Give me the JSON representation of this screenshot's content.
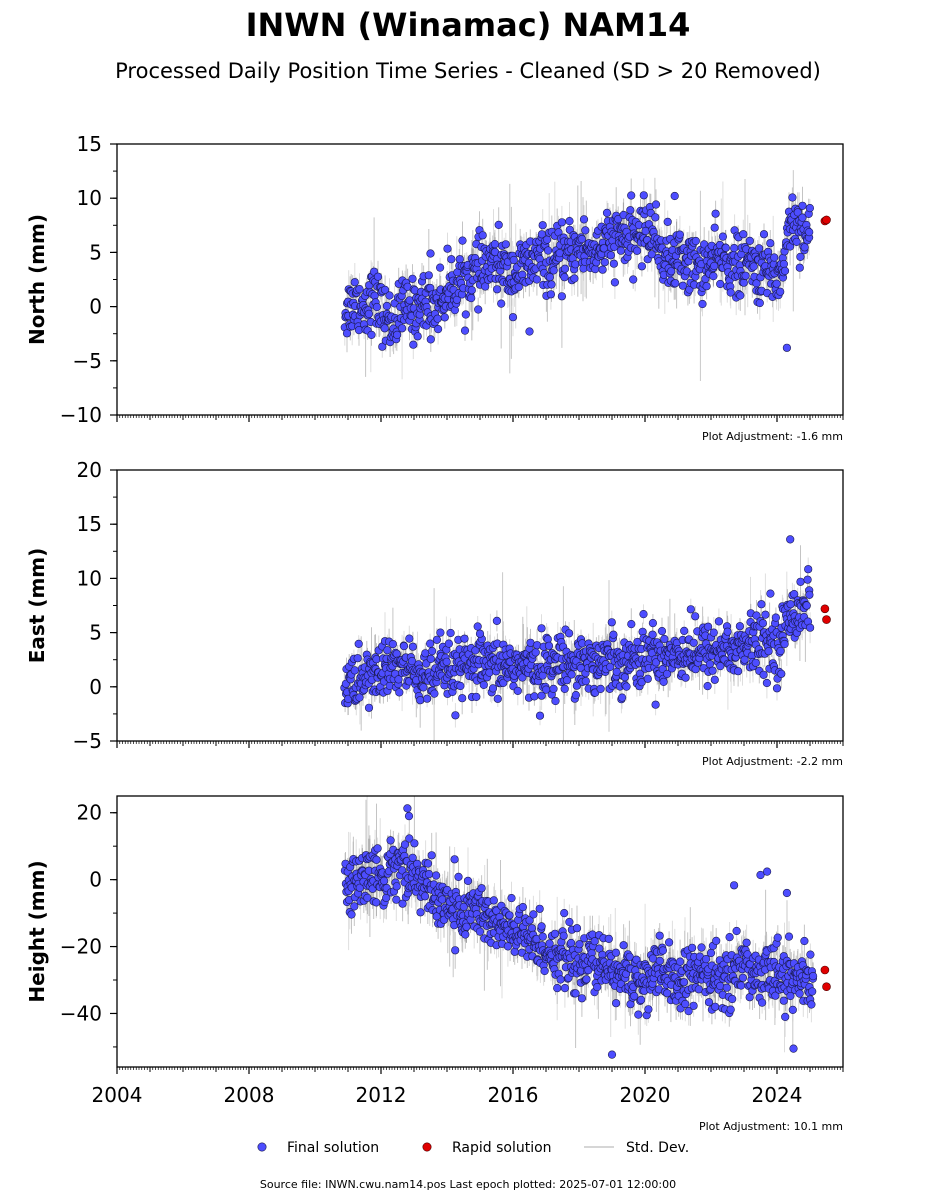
{
  "title": "INWN (Winamac) NAM14",
  "subtitle": "Processed Daily Position Time Series - Cleaned (SD > 20 Removed)",
  "colors": {
    "final": "#4d4dff",
    "rapid": "#e00000",
    "stddev": "#c8c8c8",
    "stddev_dense": "#555555",
    "axis": "#000000"
  },
  "legend": {
    "final": "Final solution",
    "rapid": "Rapid solution",
    "stddev": "Std. Dev."
  },
  "footer": "Source file: INWN.cwu.nam14.pos  Last epoch plotted: 2025-07-01 12:00:00",
  "chart_data": [
    {
      "type": "scatter",
      "id": "north",
      "ylabel": "North (mm)",
      "xlim": [
        2004,
        2026
      ],
      "ylim": [
        -10,
        15
      ],
      "y_ticks": [
        -10,
        -5,
        0,
        5,
        10,
        15
      ],
      "y_tick_labels": [
        "−10",
        "−5",
        "0",
        "5",
        "10",
        "15"
      ],
      "x_ticks": [
        2004,
        2008,
        2012,
        2016,
        2020,
        2024
      ],
      "x_tick_labels": [],
      "adjustment": "Plot Adjustment: -1.6 mm",
      "series": [
        {
          "name": "Final solution",
          "x": [
            2010.9,
            2011.2,
            2011.5,
            2011.8,
            2012.1,
            2012.4,
            2012.7,
            2013.0,
            2013.3,
            2013.6,
            2013.9,
            2014.2,
            2014.5,
            2014.8,
            2015.1,
            2015.4,
            2015.7,
            2016.0,
            2016.3,
            2016.6,
            2016.9,
            2017.2,
            2017.5,
            2017.8,
            2018.1,
            2018.4,
            2018.7,
            2019.0,
            2019.3,
            2019.6,
            2019.9,
            2020.2,
            2020.5,
            2020.8,
            2021.1,
            2021.4,
            2021.7,
            2022.0,
            2022.3,
            2022.6,
            2022.9,
            2023.2,
            2023.5,
            2023.8,
            2024.1,
            2024.4,
            2024.7,
            2025.0
          ],
          "y": [
            -0.5,
            0.5,
            0.0,
            1.0,
            -1.0,
            -1.5,
            0.0,
            -0.5,
            0.5,
            0.0,
            1.0,
            2.0,
            2.5,
            3.0,
            3.5,
            4.0,
            3.5,
            3.0,
            3.5,
            4.0,
            4.5,
            4.0,
            4.5,
            5.0,
            5.5,
            5.0,
            5.5,
            6.0,
            6.5,
            6.0,
            7.0,
            7.0,
            5.0,
            4.0,
            4.5,
            4.0,
            3.5,
            4.0,
            4.5,
            4.0,
            3.5,
            4.0,
            3.0,
            3.5,
            2.5,
            8.0,
            7.5,
            6.5
          ]
        },
        {
          "name": "Rapid solution",
          "x": [
            2025.45,
            2025.5
          ],
          "y": [
            7.9,
            8.0
          ]
        }
      ],
      "outliers": {
        "x": [
          2013.5,
          2016.5,
          2020.9,
          2024.3
        ],
        "y": [
          4.9,
          -2.3,
          10.2,
          -3.8
        ]
      },
      "stddev_typical": 1.2,
      "stddev_max": 10.0
    },
    {
      "type": "scatter",
      "id": "east",
      "ylabel": "East (mm)",
      "xlim": [
        2004,
        2026
      ],
      "ylim": [
        -5,
        20
      ],
      "y_ticks": [
        -5,
        0,
        5,
        10,
        15,
        20
      ],
      "y_tick_labels": [
        "−5",
        "0",
        "5",
        "10",
        "15",
        "20"
      ],
      "x_ticks": [
        2004,
        2008,
        2012,
        2016,
        2020,
        2024
      ],
      "x_tick_labels": [],
      "adjustment": "Plot Adjustment: -2.2 mm",
      "series": [
        {
          "name": "Final solution",
          "x": [
            2010.9,
            2011.3,
            2011.7,
            2012.1,
            2012.5,
            2012.9,
            2013.3,
            2013.7,
            2014.1,
            2014.5,
            2014.9,
            2015.3,
            2015.7,
            2016.1,
            2016.5,
            2016.9,
            2017.3,
            2017.7,
            2018.1,
            2018.5,
            2018.9,
            2019.3,
            2019.7,
            2020.1,
            2020.5,
            2020.9,
            2021.3,
            2021.7,
            2022.1,
            2022.5,
            2022.9,
            2023.3,
            2023.7,
            2024.1,
            2024.4,
            2024.7,
            2025.0
          ],
          "y": [
            0.0,
            0.5,
            1.0,
            1.5,
            2.0,
            1.5,
            1.0,
            1.0,
            1.5,
            1.5,
            2.0,
            1.5,
            2.0,
            2.0,
            1.5,
            2.0,
            2.0,
            2.5,
            2.5,
            2.0,
            2.5,
            2.5,
            2.5,
            3.0,
            3.0,
            3.0,
            3.5,
            3.0,
            3.5,
            3.5,
            3.5,
            4.0,
            4.0,
            4.0,
            6.5,
            7.5,
            7.5
          ]
        },
        {
          "name": "Rapid solution",
          "x": [
            2025.45,
            2025.5
          ],
          "y": [
            7.2,
            6.2
          ]
        }
      ],
      "outliers": {
        "x": [
          2024.4,
          2023.8,
          2015.0,
          2013.8
        ],
        "y": [
          13.6,
          8.6,
          4.9,
          5.0
        ]
      },
      "stddev_typical": 1.0,
      "stddev_max": 8.0
    },
    {
      "type": "scatter",
      "id": "height",
      "ylabel": "Height (mm)",
      "xlim": [
        2004,
        2026
      ],
      "ylim": [
        -56,
        25
      ],
      "y_ticks": [
        -40,
        -20,
        0,
        20
      ],
      "y_tick_labels": [
        "−40",
        "−20",
        "0",
        "20"
      ],
      "x_ticks": [
        2004,
        2008,
        2012,
        2016,
        2020,
        2024
      ],
      "x_tick_labels": [
        "2004",
        "2008",
        "2012",
        "2016",
        "2020",
        "2024"
      ],
      "adjustment": "Plot Adjustment: 10.1 mm",
      "series": [
        {
          "name": "Final solution",
          "x": [
            2010.9,
            2011.3,
            2011.7,
            2012.1,
            2012.5,
            2012.9,
            2013.3,
            2013.7,
            2014.1,
            2014.5,
            2014.9,
            2015.3,
            2015.7,
            2016.1,
            2016.5,
            2016.9,
            2017.3,
            2017.7,
            2018.1,
            2018.5,
            2018.9,
            2019.3,
            2019.7,
            2020.1,
            2020.5,
            2020.9,
            2021.3,
            2021.7,
            2022.1,
            2022.5,
            2022.9,
            2023.3,
            2023.7,
            2024.1,
            2024.5,
            2024.9,
            2025.1
          ],
          "y": [
            -3,
            0,
            2,
            0,
            5,
            3,
            -2,
            -5,
            -8,
            -10,
            -8,
            -12,
            -15,
            -16,
            -18,
            -20,
            -22,
            -24,
            -25,
            -25,
            -27,
            -28,
            -30,
            -30,
            -28,
            -30,
            -30,
            -28,
            -30,
            -28,
            -26,
            -28,
            -26,
            -28,
            -30,
            -30,
            -32
          ]
        },
        {
          "name": "Rapid solution",
          "x": [
            2025.45,
            2025.5
          ],
          "y": [
            -27,
            -32
          ]
        }
      ],
      "outliers": {
        "x": [
          2012.8,
          2012.85,
          2019.0,
          2022.7,
          2023.5,
          2023.7,
          2024.3,
          2024.5
        ],
        "y": [
          21.3,
          19.0,
          -52.3,
          -1.7,
          1.4,
          2.4,
          -4.0,
          -50.5
        ]
      },
      "stddev_typical": 4.5,
      "stddev_max": 20.0
    }
  ]
}
